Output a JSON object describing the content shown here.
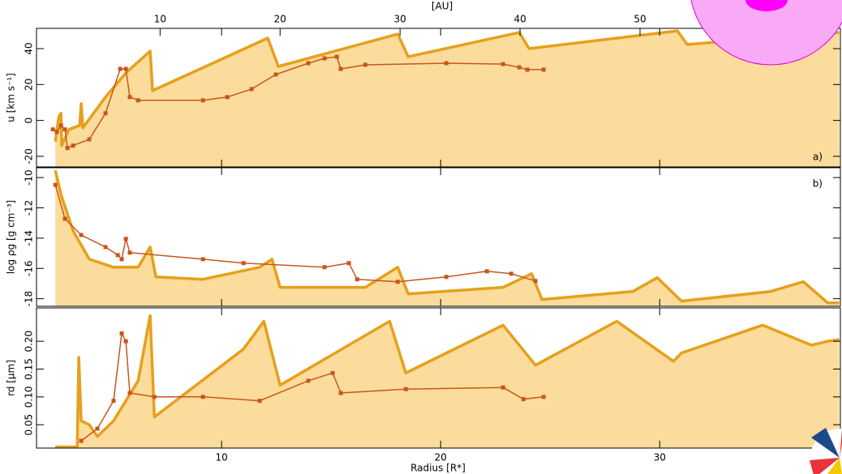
{
  "chart_data": {
    "type": "line",
    "xlabel": "Radius [R*]",
    "xlim": [
      1.55,
      38.25
    ],
    "xticks": [
      10,
      20,
      30
    ],
    "x2label": "[AU]",
    "x2lim": [
      -0.3,
      66.7
    ],
    "x2ticks": [
      10,
      20,
      30,
      40,
      50
    ],
    "panels": [
      {
        "ylabel": "u [km s⁻¹]",
        "panel_label": "a)",
        "ylim": [
          -25.9,
          51.3
        ],
        "yticks": [
          -20,
          0,
          20,
          40
        ],
        "series": [
          {
            "color": "#e5a01c",
            "fill": "#fcdc9c",
            "marker": "none",
            "x": [
              2.41,
              2.56,
              2.67,
              2.7,
              3.04,
              3.52,
              3.59,
              3.67,
              4.7,
              5.63,
              6.74,
              6.85,
              12.11,
              12.59,
              18.04,
              18.52,
              23.59,
              24.04,
              30.81,
              31.26,
              38.2
            ],
            "values": [
              -11.8,
              1.7,
              4,
              -14,
              -5,
              -2.8,
              9.4,
              -4.1,
              13,
              26.5,
              38.6,
              16.6,
              45.9,
              30.1,
              48.1,
              35.5,
              49,
              40,
              49.9,
              42.3,
              49
            ]
          },
          {
            "color": "#c8561a",
            "marker": "square",
            "x": [
              2.3,
              2.48,
              2.67,
              2.85,
              2.96,
              3.22,
              3.96,
              4.7,
              5.37,
              5.63,
              5.81,
              6.19,
              9.15,
              10.26,
              11.37,
              12.48,
              13.96,
              14.7,
              15.26,
              15.44,
              16.56,
              20.26,
              22.85,
              23.59,
              23.96,
              24.7
            ],
            "values": [
              -5,
              -6.4,
              -2.8,
              -5,
              -15.4,
              -14,
              -10.5,
              4,
              28.7,
              28.7,
              13,
              11.2,
              11.2,
              13,
              17.5,
              25.6,
              31.9,
              34.6,
              35.5,
              28.7,
              31,
              31.9,
              31.4,
              29.6,
              28.3,
              28.3
            ]
          }
        ]
      },
      {
        "ylabel": "log ρg [g cm⁻³]",
        "panel_label": "b)",
        "ylim": [
          -18.5,
          -9.35
        ],
        "yticks": [
          -18,
          -16,
          -14,
          -12,
          -10
        ],
        "series": [
          {
            "color": "#e5a01c",
            "fill": "#fcdc9c",
            "marker": "none",
            "x": [
              2.41,
              2.67,
              3.22,
              3.96,
              5.07,
              6.19,
              6.74,
              7.0,
              9.15,
              11.74,
              12.3,
              12.67,
              16.56,
              18.04,
              18.52,
              22.85,
              24.15,
              24.63,
              28.78,
              29.89,
              31.0,
              35.07,
              36.56,
              37.67,
              38.2
            ],
            "values": [
              -9.52,
              -11.12,
              -13.52,
              -15.39,
              -15.92,
              -15.92,
              -14.59,
              -16.56,
              -16.72,
              -15.92,
              -15.39,
              -17.25,
              -17.25,
              -15.92,
              -17.68,
              -17.25,
              -16.35,
              -18.05,
              -17.52,
              -16.61,
              -18.16,
              -17.52,
              -16.88,
              -18.27,
              -18.27
            ]
          },
          {
            "color": "#c8561a",
            "marker": "square",
            "x": [
              2.41,
              2.85,
              3.59,
              4.7,
              5.26,
              5.44,
              5.63,
              5.81,
              9.15,
              11.0,
              14.7,
              15.81,
              16.19,
              18.04,
              20.26,
              22.11,
              23.22,
              24.33
            ],
            "values": [
              -10.48,
              -12.72,
              -13.79,
              -14.59,
              -15.12,
              -15.39,
              -14.05,
              -14.96,
              -15.39,
              -15.65,
              -15.92,
              -15.65,
              -16.72,
              -16.88,
              -16.56,
              -16.19,
              -16.35,
              -16.83
            ]
          }
        ]
      },
      {
        "ylabel": "rd [µm]",
        "ylim": [
          0.008,
          0.26
        ],
        "yticks": [
          0.05,
          {
            "value": 0.1,
            "label": "0.10"
          },
          0.15,
          {
            "value": 0.2,
            "label": "0.20"
          }
        ],
        "series": [
          {
            "color": "#e5a01c",
            "fill": "#fcdc9c",
            "marker": "none",
            "x": [
              2.41,
              3.41,
              3.48,
              3.59,
              3.96,
              4.33,
              5.07,
              6.19,
              6.74,
              6.93,
              11.0,
              11.93,
              12.67,
              17.67,
              18.41,
              22.85,
              24.33,
              28.04,
              30.63,
              31.0,
              34.7,
              36.93,
              37.67,
              38.2
            ],
            "values": [
              0.01,
              0.01,
              0.171,
              0.057,
              0.05,
              0.029,
              0.057,
              0.129,
              0.246,
              0.064,
              0.186,
              0.236,
              0.121,
              0.236,
              0.143,
              0.229,
              0.157,
              0.236,
              0.164,
              0.179,
              0.229,
              0.193,
              0.2,
              0.203
            ]
          },
          {
            "color": "#c8561a",
            "marker": "square",
            "x": [
              3.59,
              4.33,
              5.07,
              5.44,
              5.63,
              5.81,
              6.93,
              9.15,
              11.74,
              13.96,
              15.07,
              15.44,
              18.41,
              22.85,
              23.78,
              24.7
            ],
            "values": [
              0.021,
              0.043,
              0.093,
              0.214,
              0.2,
              0.107,
              0.1,
              0.1,
              0.093,
              0.129,
              0.143,
              0.107,
              0.114,
              0.117,
              0.096,
              0.1
            ]
          }
        ]
      }
    ]
  }
}
